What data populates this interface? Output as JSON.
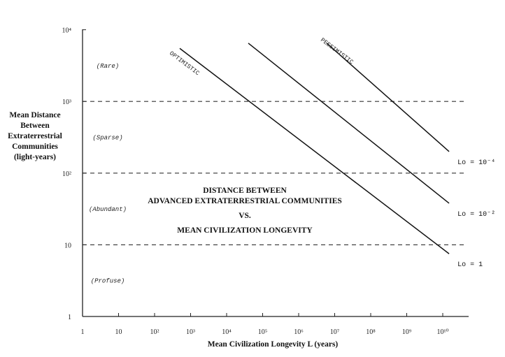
{
  "chart_data": {
    "type": "line",
    "title_lines": [
      "DISTANCE BETWEEN",
      "ADVANCED EXTRATERRESTRIAL COMMUNITIES",
      "VS.",
      "MEAN CIVILIZATION LONGEVITY"
    ],
    "xlabel": "Mean Civilization Longevity L (years)",
    "ylabel_lines": [
      "Mean Distance",
      "Between",
      "Extraterrestrial",
      "Communities",
      "(light-years)"
    ],
    "x_scale": "log",
    "y_scale": "log",
    "xlim": [
      1,
      30000000000
    ],
    "ylim": [
      1,
      10000
    ],
    "x_ticks": [
      {
        "value": 1,
        "label": "1"
      },
      {
        "value": 10,
        "label": "10"
      },
      {
        "value": 100,
        "label": "10²"
      },
      {
        "value": 1000,
        "label": "10³"
      },
      {
        "value": 10000,
        "label": "10⁴"
      },
      {
        "value": 100000,
        "label": "10⁵"
      },
      {
        "value": 1000000,
        "label": "10⁶"
      },
      {
        "value": 10000000,
        "label": "10⁷"
      },
      {
        "value": 100000000,
        "label": "10⁸"
      },
      {
        "value": 1000000000,
        "label": "10⁹"
      },
      {
        "value": 10000000000,
        "label": "10¹⁰"
      }
    ],
    "y_ticks": [
      {
        "value": 1,
        "label": "1"
      },
      {
        "value": 10,
        "label": "10"
      },
      {
        "value": 100,
        "label": "10²"
      },
      {
        "value": 1000,
        "label": "10³"
      },
      {
        "value": 10000,
        "label": "10⁴"
      }
    ],
    "reference_lines_y": [
      10,
      100,
      1000
    ],
    "regions": [
      {
        "label": "(Rare)",
        "y": 3162
      },
      {
        "label": "(Sparse)",
        "y": 316
      },
      {
        "label": "(Abundant)",
        "y": 31.6
      },
      {
        "label": "(Profuse)",
        "y": 3.16
      }
    ],
    "series": [
      {
        "end_label": "Lo = 1",
        "points": [
          [
            500,
            5500
          ],
          [
            15000000000,
            7.5
          ]
        ]
      },
      {
        "end_label": "Lo = 10⁻²",
        "points": [
          [
            40000,
            6500
          ],
          [
            15000000000,
            38
          ]
        ]
      },
      {
        "end_label": "Lo = 10⁻⁴",
        "points": [
          [
            6000000,
            6500
          ],
          [
            15000000000,
            200
          ]
        ]
      }
    ],
    "annotations": [
      {
        "text": "OPTIMISTIC"
      },
      {
        "text": "PESSIMISTIC"
      }
    ],
    "grid": false
  }
}
